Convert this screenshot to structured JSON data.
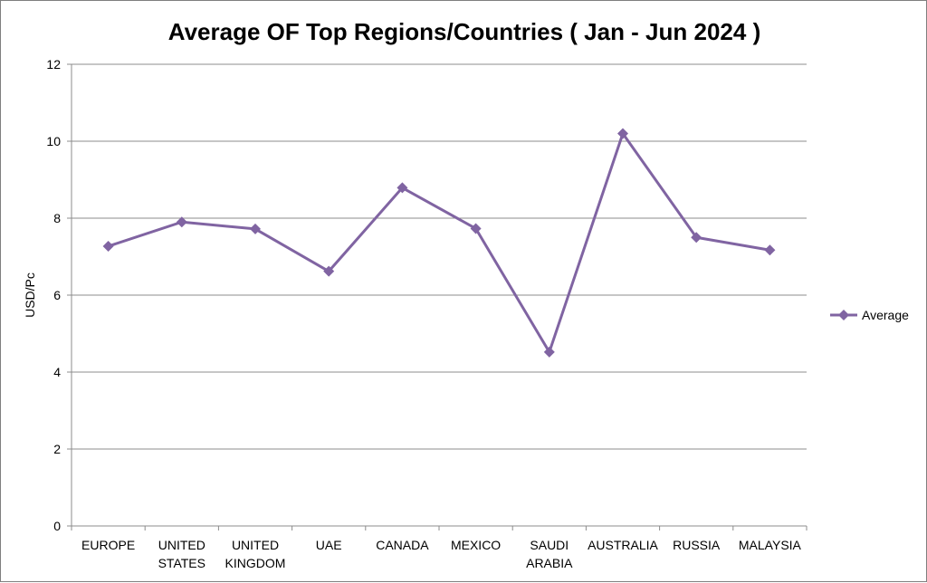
{
  "chart_data": {
    "type": "line",
    "title": "Average OF Top Regions/Countries ( Jan - Jun 2024 )",
    "xlabel": "",
    "ylabel": "USD/Pc",
    "categories": [
      [
        "EUROPE"
      ],
      [
        "UNITED",
        "STATES"
      ],
      [
        "UNITED",
        "KINGDOM"
      ],
      [
        "UAE"
      ],
      [
        "CANADA"
      ],
      [
        "MEXICO"
      ],
      [
        "SAUDI",
        "ARABIA"
      ],
      [
        "AUSTRALIA"
      ],
      [
        "RUSSIA"
      ],
      [
        "MALAYSIA"
      ]
    ],
    "series": [
      {
        "name": "Average",
        "color": "#8064a2",
        "marker": "diamond",
        "values": [
          7.27,
          7.9,
          7.72,
          6.62,
          8.79,
          7.73,
          4.52,
          10.2,
          7.5,
          7.17
        ]
      }
    ],
    "ylim": [
      0,
      12
    ],
    "yticks": [
      0,
      2,
      4,
      6,
      8,
      10,
      12
    ],
    "grid": true,
    "legend_position": "right"
  }
}
